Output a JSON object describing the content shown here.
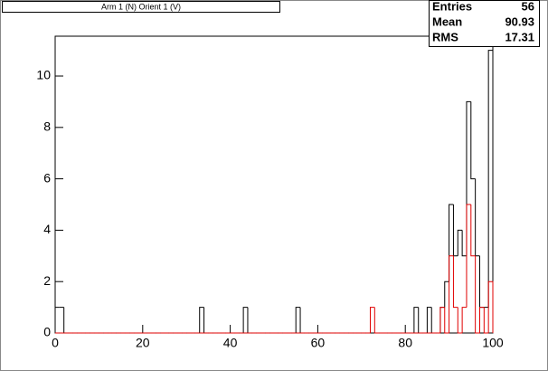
{
  "chart_data": {
    "type": "histogram",
    "title": "Arm 1 (N) Orient 1 (V)",
    "bins": [
      0,
      1,
      2,
      3,
      4,
      5,
      6,
      7,
      8,
      9,
      10,
      11,
      12,
      13,
      14,
      15,
      16,
      17,
      18,
      19,
      20,
      21,
      22,
      23,
      24,
      25,
      26,
      27,
      28,
      29,
      30,
      31,
      32,
      33,
      34,
      35,
      36,
      37,
      38,
      39,
      40,
      41,
      42,
      43,
      44,
      45,
      46,
      47,
      48,
      49,
      50,
      51,
      52,
      53,
      54,
      55,
      56,
      57,
      58,
      59,
      60,
      61,
      62,
      63,
      64,
      65,
      66,
      67,
      68,
      69,
      70,
      71,
      72,
      73,
      74,
      75,
      76,
      77,
      78,
      79,
      80,
      81,
      82,
      83,
      84,
      85,
      86,
      87,
      88,
      89,
      90,
      91,
      92,
      93,
      94,
      95,
      96,
      97,
      98,
      99,
      100
    ],
    "series": [
      {
        "color": "#000000",
        "values": [
          1,
          1,
          0,
          0,
          0,
          0,
          0,
          0,
          0,
          0,
          0,
          0,
          0,
          0,
          0,
          0,
          0,
          0,
          0,
          0,
          0,
          0,
          0,
          0,
          0,
          0,
          0,
          0,
          0,
          0,
          0,
          0,
          0,
          1,
          0,
          0,
          0,
          0,
          0,
          0,
          0,
          0,
          0,
          1,
          0,
          0,
          0,
          0,
          0,
          0,
          0,
          0,
          0,
          0,
          0,
          1,
          0,
          0,
          0,
          0,
          0,
          0,
          0,
          0,
          0,
          0,
          0,
          0,
          0,
          0,
          0,
          0,
          0,
          0,
          0,
          0,
          0,
          0,
          0,
          0,
          0,
          0,
          1,
          0,
          0,
          1,
          0,
          0,
          1,
          2,
          5,
          3,
          4,
          3,
          9,
          6,
          3,
          1,
          1,
          11
        ]
      },
      {
        "color": "#e00000",
        "values": [
          0,
          0,
          0,
          0,
          0,
          0,
          0,
          0,
          0,
          0,
          0,
          0,
          0,
          0,
          0,
          0,
          0,
          0,
          0,
          0,
          0,
          0,
          0,
          0,
          0,
          0,
          0,
          0,
          0,
          0,
          0,
          0,
          0,
          0,
          0,
          0,
          0,
          0,
          0,
          0,
          0,
          0,
          0,
          0,
          0,
          0,
          0,
          0,
          0,
          0,
          0,
          0,
          0,
          0,
          0,
          0,
          0,
          0,
          0,
          0,
          0,
          0,
          0,
          0,
          0,
          0,
          0,
          0,
          0,
          0,
          0,
          0,
          1,
          0,
          0,
          0,
          0,
          0,
          0,
          0,
          0,
          0,
          0,
          0,
          0,
          0,
          0,
          0,
          1,
          0,
          3,
          1,
          0,
          1,
          5,
          3,
          0,
          1,
          0,
          2
        ]
      }
    ],
    "xlim": [
      0,
      100
    ],
    "xticks": [
      0,
      20,
      40,
      60,
      80,
      100
    ],
    "ylim": [
      0,
      11.55
    ],
    "yticks": [
      0,
      2,
      4,
      6,
      8,
      10
    ],
    "stats": [
      {
        "label": "Entries",
        "value": 56
      },
      {
        "label": "Mean",
        "value": 90.93
      },
      {
        "label": "RMS",
        "value": 17.31
      }
    ]
  }
}
